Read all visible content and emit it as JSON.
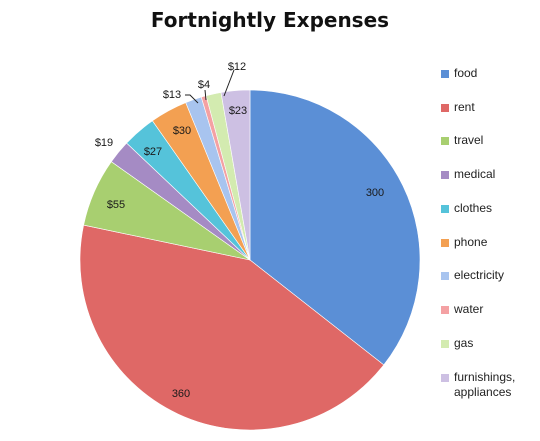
{
  "chart_data": {
    "type": "pie",
    "title": "Fortnightly Expenses",
    "start_angle_deg": 0,
    "direction": "clockwise",
    "slices": [
      {
        "name": "food",
        "value": 300,
        "label": "300",
        "color": "#5b8fd6"
      },
      {
        "name": "rent",
        "value": 360,
        "label": "360",
        "color": "#df6866"
      },
      {
        "name": "travel",
        "value": 55,
        "label": "$55",
        "color": "#a8cf70"
      },
      {
        "name": "medical",
        "value": 19,
        "label": "$19",
        "color": "#a58bc4"
      },
      {
        "name": "clothes",
        "value": 27,
        "label": "$27",
        "color": "#55c3da"
      },
      {
        "name": "phone",
        "value": 30,
        "label": "$30",
        "color": "#f3a052"
      },
      {
        "name": "electricity",
        "value": 13,
        "label": "$13",
        "color": "#a8c4ef"
      },
      {
        "name": "water",
        "value": 4,
        "label": "$4",
        "color": "#f4a1a3"
      },
      {
        "name": "gas",
        "value": 12,
        "label": "$12",
        "color": "#d3ebb0"
      },
      {
        "name": "furnishings, appliances",
        "value": 23,
        "label": "$23",
        "color": "#cdc0e3"
      }
    ],
    "legend": {
      "position": "right",
      "entries": [
        "food",
        "rent",
        "travel",
        "medical",
        "clothes",
        "phone",
        "electricity",
        "water",
        "gas",
        "furnishings,\nappliances"
      ]
    }
  }
}
